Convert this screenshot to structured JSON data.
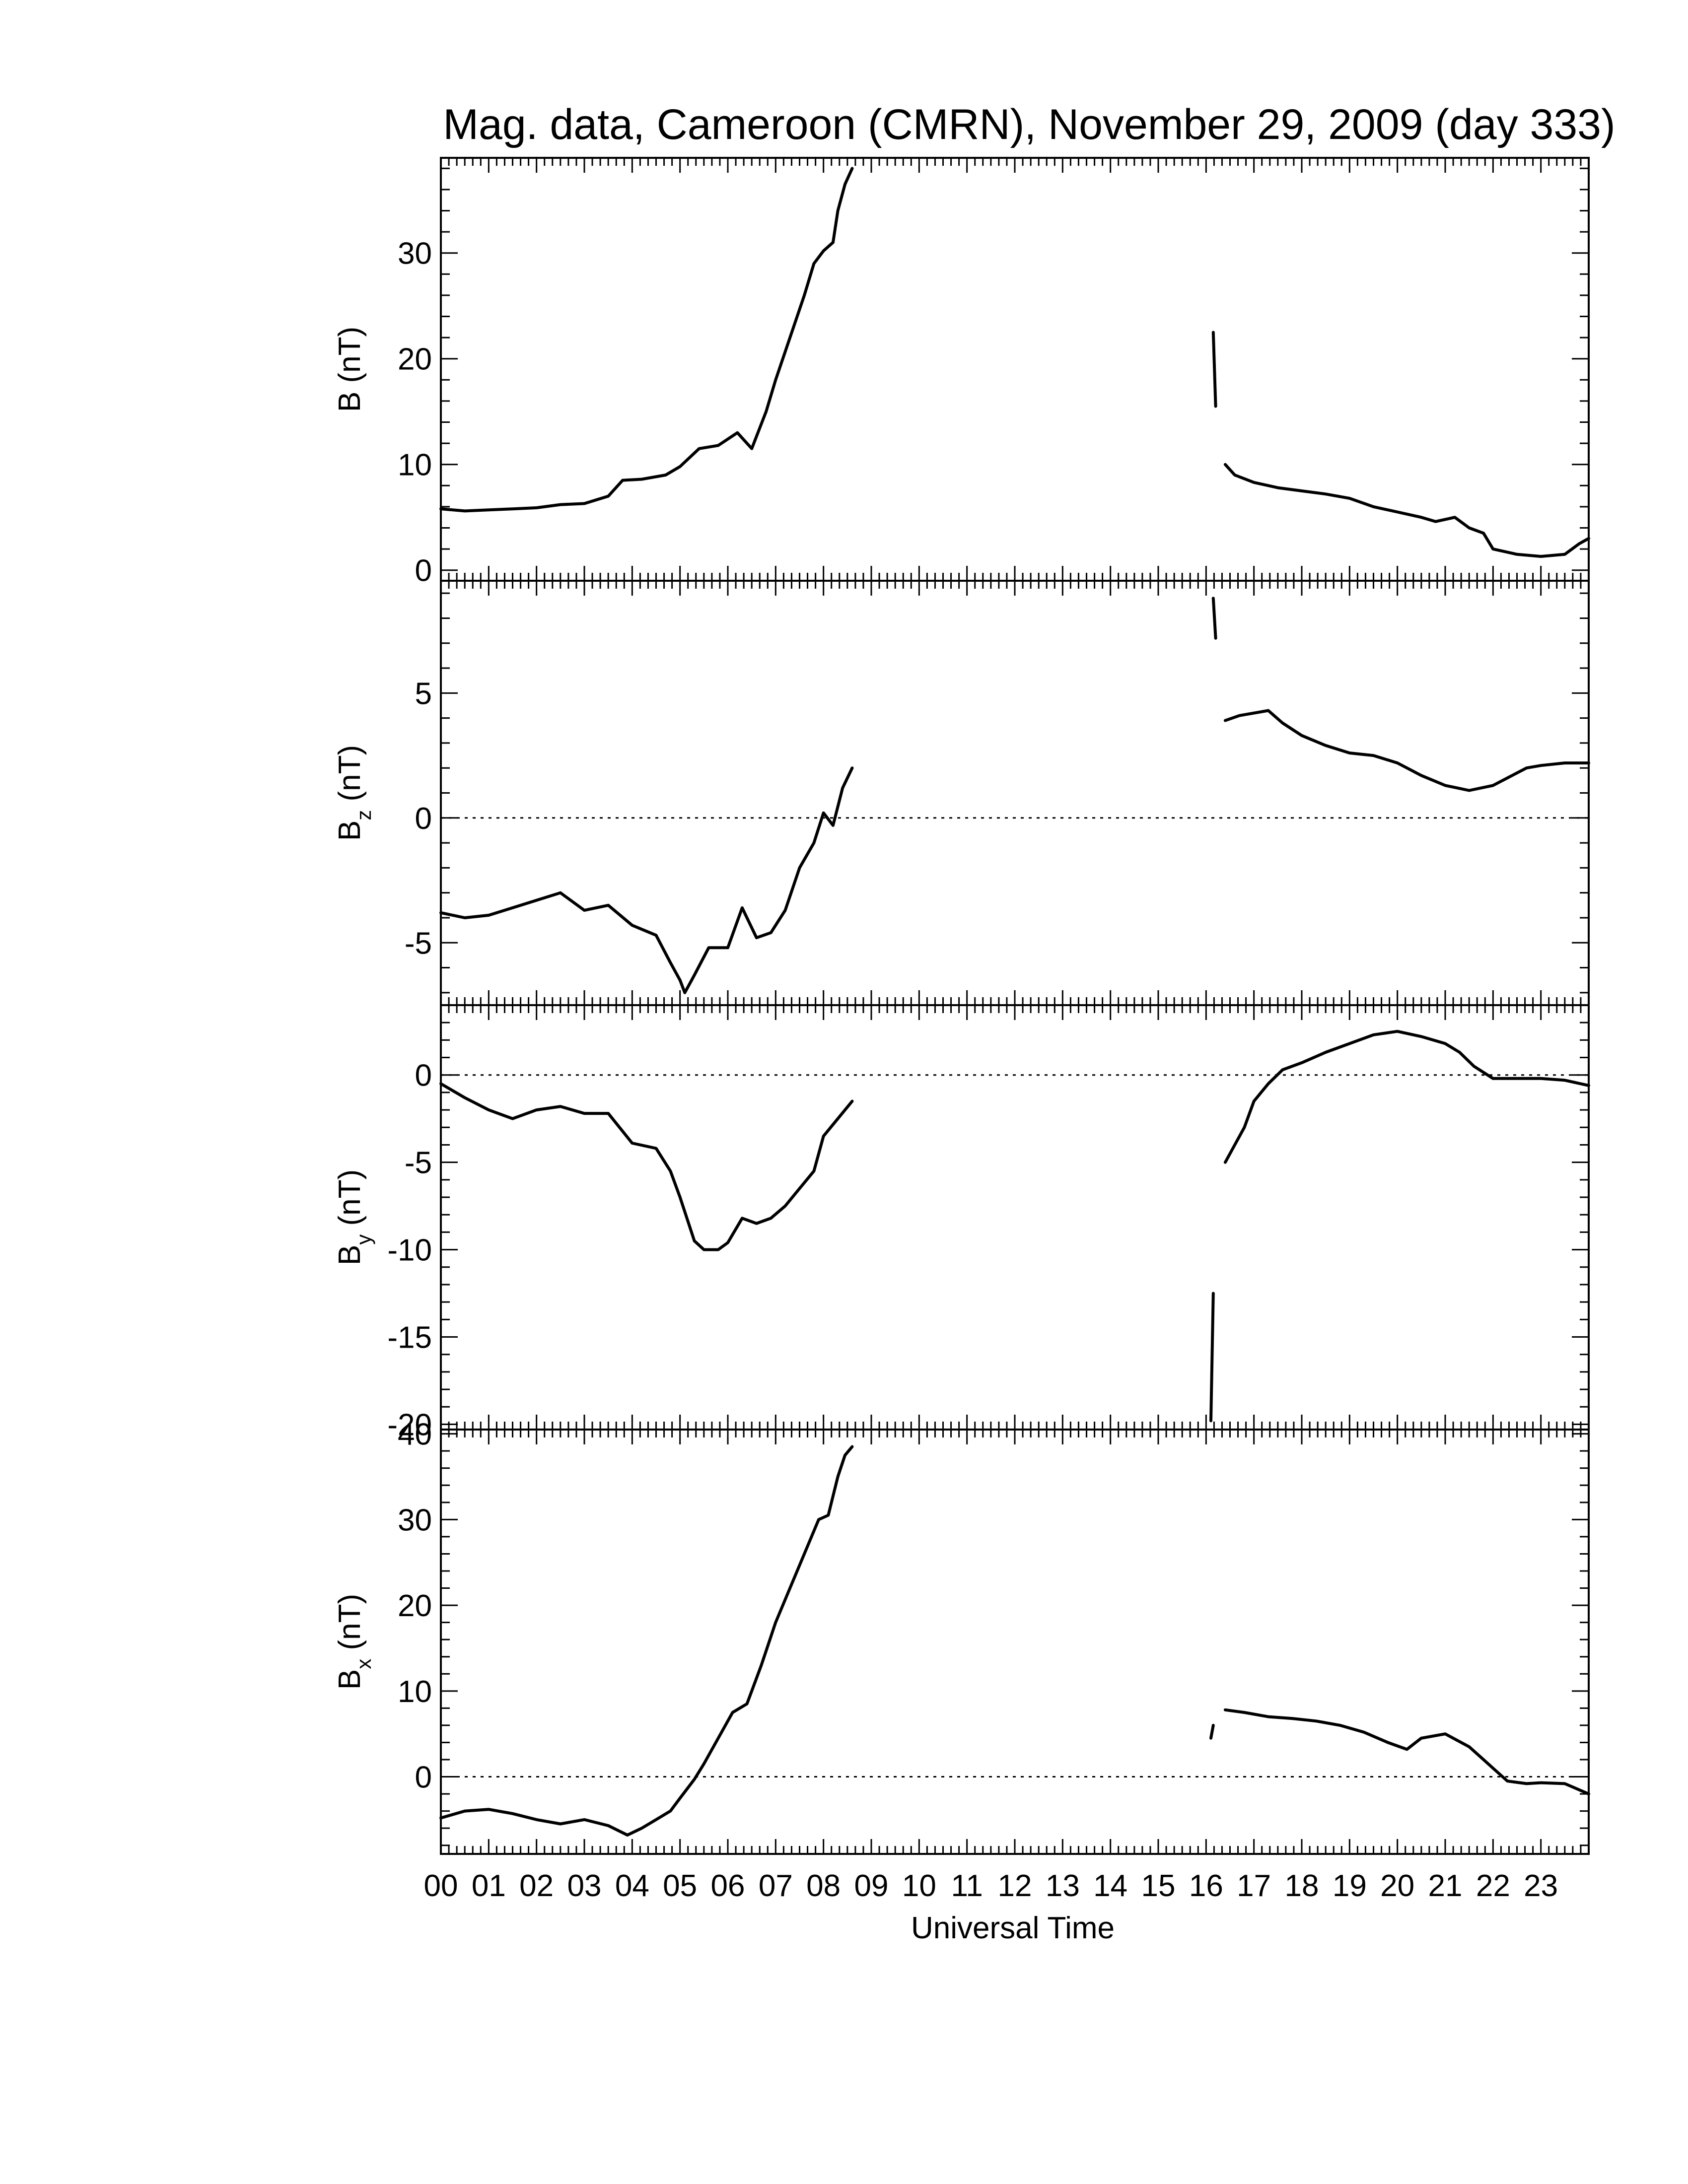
{
  "chart_data": {
    "type": "line",
    "title": "Mag. data, Cameroon (CMRN), November 29, 2009 (day 333)",
    "xlabel": "Universal Time",
    "xlim": [
      0,
      24
    ],
    "xtick_labels": [
      "00",
      "01",
      "02",
      "03",
      "04",
      "05",
      "06",
      "07",
      "08",
      "09",
      "10",
      "11",
      "12",
      "13",
      "14",
      "15",
      "16",
      "17",
      "18",
      "19",
      "20",
      "21",
      "22",
      "23"
    ],
    "panels": [
      {
        "ylabel_main": "B",
        "ylabel_sub": "",
        "ylabel_unit": "(nT)",
        "ylim": [
          -1,
          39
        ],
        "yticks": [
          0,
          10,
          20,
          30
        ],
        "zero_line": false,
        "segments": [
          [
            [
              0.0,
              5.8
            ],
            [
              0.5,
              5.6
            ],
            [
              1.0,
              5.7
            ],
            [
              1.5,
              5.8
            ],
            [
              2.0,
              5.9
            ],
            [
              2.5,
              6.2
            ],
            [
              3.0,
              6.3
            ],
            [
              3.5,
              7.0
            ],
            [
              3.8,
              8.5
            ],
            [
              4.2,
              8.6
            ],
            [
              4.7,
              9.0
            ],
            [
              5.0,
              9.8
            ],
            [
              5.4,
              11.5
            ],
            [
              5.8,
              11.8
            ],
            [
              6.2,
              13.0
            ],
            [
              6.5,
              11.5
            ],
            [
              6.8,
              15.0
            ],
            [
              7.0,
              18.0
            ],
            [
              7.3,
              22.0
            ],
            [
              7.6,
              26.0
            ],
            [
              7.8,
              29.0
            ],
            [
              8.0,
              30.2
            ],
            [
              8.2,
              31.0
            ],
            [
              8.3,
              34.0
            ],
            [
              8.45,
              36.5
            ],
            [
              8.6,
              38.0
            ]
          ],
          [
            [
              16.15,
              22.5
            ],
            [
              16.2,
              15.5
            ]
          ],
          [
            [
              16.4,
              10.0
            ],
            [
              16.6,
              9.0
            ],
            [
              17.0,
              8.3
            ],
            [
              17.5,
              7.8
            ],
            [
              18.0,
              7.5
            ],
            [
              18.5,
              7.2
            ],
            [
              19.0,
              6.8
            ],
            [
              19.5,
              6.0
            ],
            [
              20.0,
              5.5
            ],
            [
              20.5,
              5.0
            ],
            [
              20.8,
              4.6
            ],
            [
              21.2,
              5.0
            ],
            [
              21.5,
              4.0
            ],
            [
              21.8,
              3.5
            ],
            [
              22.0,
              2.0
            ],
            [
              22.5,
              1.5
            ],
            [
              23.0,
              1.3
            ],
            [
              23.5,
              1.5
            ],
            [
              23.8,
              2.5
            ],
            [
              24.0,
              3.0
            ]
          ]
        ]
      },
      {
        "ylabel_main": "B",
        "ylabel_sub": "z",
        "ylabel_unit": "(nT)",
        "ylim": [
          -7.5,
          9.5
        ],
        "yticks": [
          -5,
          0,
          5
        ],
        "zero_line": true,
        "segments": [
          [
            [
              0.0,
              -3.8
            ],
            [
              0.5,
              -4.0
            ],
            [
              1.0,
              -3.9
            ],
            [
              1.5,
              -3.6
            ],
            [
              2.0,
              -3.3
            ],
            [
              2.5,
              -3.0
            ],
            [
              3.0,
              -3.7
            ],
            [
              3.5,
              -3.5
            ],
            [
              4.0,
              -4.3
            ],
            [
              4.5,
              -4.7
            ],
            [
              4.8,
              -5.8
            ],
            [
              5.0,
              -6.5
            ],
            [
              5.1,
              -7.0
            ],
            [
              5.3,
              -6.3
            ],
            [
              5.6,
              -5.2
            ],
            [
              6.0,
              -5.2
            ],
            [
              6.3,
              -3.6
            ],
            [
              6.6,
              -4.8
            ],
            [
              6.9,
              -4.6
            ],
            [
              7.2,
              -3.7
            ],
            [
              7.5,
              -2.0
            ],
            [
              7.8,
              -1.0
            ],
            [
              8.0,
              0.2
            ],
            [
              8.2,
              -0.3
            ],
            [
              8.4,
              1.2
            ],
            [
              8.6,
              2.0
            ]
          ],
          [
            [
              16.15,
              8.8
            ],
            [
              16.2,
              7.2
            ]
          ],
          [
            [
              16.4,
              3.9
            ],
            [
              16.7,
              4.1
            ],
            [
              17.0,
              4.2
            ],
            [
              17.3,
              4.3
            ],
            [
              17.6,
              3.8
            ],
            [
              18.0,
              3.3
            ],
            [
              18.5,
              2.9
            ],
            [
              19.0,
              2.6
            ],
            [
              19.5,
              2.5
            ],
            [
              20.0,
              2.2
            ],
            [
              20.5,
              1.7
            ],
            [
              21.0,
              1.3
            ],
            [
              21.5,
              1.1
            ],
            [
              22.0,
              1.3
            ],
            [
              22.3,
              1.6
            ],
            [
              22.7,
              2.0
            ],
            [
              23.0,
              2.1
            ],
            [
              23.5,
              2.2
            ],
            [
              24.0,
              2.2
            ]
          ]
        ]
      },
      {
        "ylabel_main": "B",
        "ylabel_sub": "y",
        "ylabel_unit": "(nT)",
        "ylim": [
          -20.3,
          4
        ],
        "yticks": [
          -20,
          -15,
          -10,
          -5,
          0
        ],
        "zero_line": true,
        "segments": [
          [
            [
              0.0,
              -0.5
            ],
            [
              0.5,
              -1.3
            ],
            [
              1.0,
              -2.0
            ],
            [
              1.5,
              -2.5
            ],
            [
              2.0,
              -2.0
            ],
            [
              2.5,
              -1.8
            ],
            [
              3.0,
              -2.2
            ],
            [
              3.5,
              -2.2
            ],
            [
              4.0,
              -3.9
            ],
            [
              4.5,
              -4.2
            ],
            [
              4.8,
              -5.5
            ],
            [
              5.0,
              -7.0
            ],
            [
              5.3,
              -9.5
            ],
            [
              5.5,
              -10.0
            ],
            [
              5.8,
              -10.0
            ],
            [
              6.0,
              -9.6
            ],
            [
              6.3,
              -8.2
            ],
            [
              6.6,
              -8.5
            ],
            [
              6.9,
              -8.2
            ],
            [
              7.2,
              -7.5
            ],
            [
              7.5,
              -6.5
            ],
            [
              7.8,
              -5.5
            ],
            [
              8.0,
              -3.5
            ],
            [
              8.3,
              -2.5
            ],
            [
              8.6,
              -1.5
            ]
          ],
          [
            [
              16.15,
              -12.5
            ],
            [
              16.1,
              -19.8
            ]
          ],
          [
            [
              16.4,
              -5.0
            ],
            [
              16.6,
              -4.0
            ],
            [
              16.8,
              -3.0
            ],
            [
              17.0,
              -1.5
            ],
            [
              17.3,
              -0.5
            ],
            [
              17.6,
              0.3
            ],
            [
              18.0,
              0.7
            ],
            [
              18.5,
              1.3
            ],
            [
              19.0,
              1.8
            ],
            [
              19.5,
              2.3
            ],
            [
              20.0,
              2.5
            ],
            [
              20.5,
              2.2
            ],
            [
              21.0,
              1.8
            ],
            [
              21.3,
              1.3
            ],
            [
              21.6,
              0.5
            ],
            [
              22.0,
              -0.2
            ],
            [
              22.5,
              -0.2
            ],
            [
              23.0,
              -0.2
            ],
            [
              23.5,
              -0.3
            ],
            [
              24.0,
              -0.6
            ]
          ]
        ]
      },
      {
        "ylabel_main": "B",
        "ylabel_sub": "x",
        "ylabel_unit": "(nT)",
        "ylim": [
          -9,
          40.5
        ],
        "yticks": [
          0,
          10,
          20,
          30,
          40
        ],
        "zero_line": true,
        "segments": [
          [
            [
              0.0,
              -4.8
            ],
            [
              0.5,
              -4.0
            ],
            [
              1.0,
              -3.8
            ],
            [
              1.5,
              -4.3
            ],
            [
              2.0,
              -5.0
            ],
            [
              2.5,
              -5.5
            ],
            [
              3.0,
              -5.0
            ],
            [
              3.5,
              -5.7
            ],
            [
              3.9,
              -6.8
            ],
            [
              4.2,
              -6.0
            ],
            [
              4.5,
              -5.0
            ],
            [
              4.8,
              -4.0
            ],
            [
              5.0,
              -2.5
            ],
            [
              5.3,
              -0.3
            ],
            [
              5.5,
              1.5
            ],
            [
              5.8,
              4.5
            ],
            [
              6.1,
              7.5
            ],
            [
              6.4,
              8.5
            ],
            [
              6.7,
              13.0
            ],
            [
              7.0,
              18.0
            ],
            [
              7.3,
              22.0
            ],
            [
              7.6,
              26.0
            ],
            [
              7.9,
              30.0
            ],
            [
              8.1,
              30.5
            ],
            [
              8.3,
              35.0
            ],
            [
              8.45,
              37.5
            ],
            [
              8.6,
              38.5
            ]
          ],
          [
            [
              16.1,
              4.5
            ],
            [
              16.15,
              6.0
            ]
          ],
          [
            [
              16.4,
              7.8
            ],
            [
              16.8,
              7.5
            ],
            [
              17.3,
              7.0
            ],
            [
              17.8,
              6.8
            ],
            [
              18.3,
              6.5
            ],
            [
              18.8,
              6.0
            ],
            [
              19.3,
              5.2
            ],
            [
              19.8,
              4.0
            ],
            [
              20.2,
              3.2
            ],
            [
              20.5,
              4.5
            ],
            [
              21.0,
              5.0
            ],
            [
              21.5,
              3.5
            ],
            [
              21.8,
              2.0
            ],
            [
              22.0,
              1.0
            ],
            [
              22.3,
              -0.5
            ],
            [
              22.7,
              -0.8
            ],
            [
              23.0,
              -0.7
            ],
            [
              23.5,
              -0.8
            ],
            [
              24.0,
              -2.0
            ]
          ]
        ]
      }
    ]
  }
}
